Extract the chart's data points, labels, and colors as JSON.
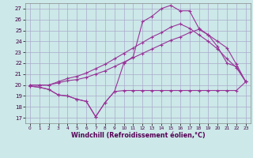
{
  "xlabel": "Windchill (Refroidissement éolien,°C)",
  "background_color": "#cce8e8",
  "grid_color": "#aaaacc",
  "line_color": "#993399",
  "x_ticks": [
    0,
    1,
    2,
    3,
    4,
    5,
    6,
    7,
    8,
    9,
    10,
    11,
    12,
    13,
    14,
    15,
    16,
    17,
    18,
    19,
    20,
    21,
    22,
    23
  ],
  "y_ticks": [
    17,
    18,
    19,
    20,
    21,
    22,
    23,
    24,
    25,
    26,
    27
  ],
  "xlim": [
    -0.5,
    23.5
  ],
  "ylim": [
    16.5,
    27.5
  ],
  "series": [
    {
      "x": [
        0,
        1,
        2,
        3,
        4,
        5,
        6,
        7,
        8,
        9,
        10,
        11,
        12,
        13,
        14,
        15,
        16,
        17,
        18,
        19,
        20,
        21,
        22,
        23
      ],
      "y": [
        19.9,
        19.8,
        19.6,
        19.1,
        19.0,
        18.7,
        18.5,
        17.1,
        18.4,
        19.4,
        19.5,
        19.5,
        19.5,
        19.5,
        19.5,
        19.5,
        19.5,
        19.5,
        19.5,
        19.5,
        19.5,
        19.5,
        19.5,
        20.3
      ]
    },
    {
      "x": [
        0,
        1,
        2,
        3,
        4,
        5,
        6,
        7,
        8,
        9,
        10,
        11,
        12,
        13,
        14,
        15,
        16,
        17,
        18,
        19,
        20,
        21,
        22,
        23
      ],
      "y": [
        20.0,
        20.0,
        20.0,
        20.2,
        20.4,
        20.5,
        20.7,
        21.0,
        21.3,
        21.7,
        22.1,
        22.5,
        22.9,
        23.3,
        23.7,
        24.1,
        24.4,
        24.8,
        25.1,
        24.6,
        24.0,
        23.4,
        21.9,
        20.3
      ]
    },
    {
      "x": [
        0,
        1,
        2,
        3,
        4,
        5,
        6,
        7,
        8,
        9,
        10,
        11,
        12,
        13,
        14,
        15,
        16,
        17,
        18,
        19,
        20,
        21,
        22,
        23
      ],
      "y": [
        20.0,
        20.0,
        20.0,
        20.3,
        20.6,
        20.8,
        21.1,
        21.5,
        21.9,
        22.4,
        22.9,
        23.4,
        23.9,
        24.4,
        24.8,
        25.3,
        25.6,
        25.2,
        24.6,
        24.0,
        23.3,
        22.4,
        21.6,
        20.3
      ]
    },
    {
      "x": [
        0,
        1,
        2,
        3,
        4,
        5,
        6,
        7,
        8,
        9,
        10,
        11,
        12,
        13,
        14,
        15,
        16,
        17,
        18,
        19,
        20,
        21,
        22,
        23
      ],
      "y": [
        19.9,
        19.8,
        19.6,
        19.1,
        19.0,
        18.7,
        18.5,
        17.1,
        18.4,
        19.4,
        22.0,
        22.6,
        25.8,
        26.3,
        27.0,
        27.3,
        26.8,
        26.8,
        25.2,
        24.6,
        23.5,
        22.0,
        21.7,
        20.3
      ]
    }
  ]
}
